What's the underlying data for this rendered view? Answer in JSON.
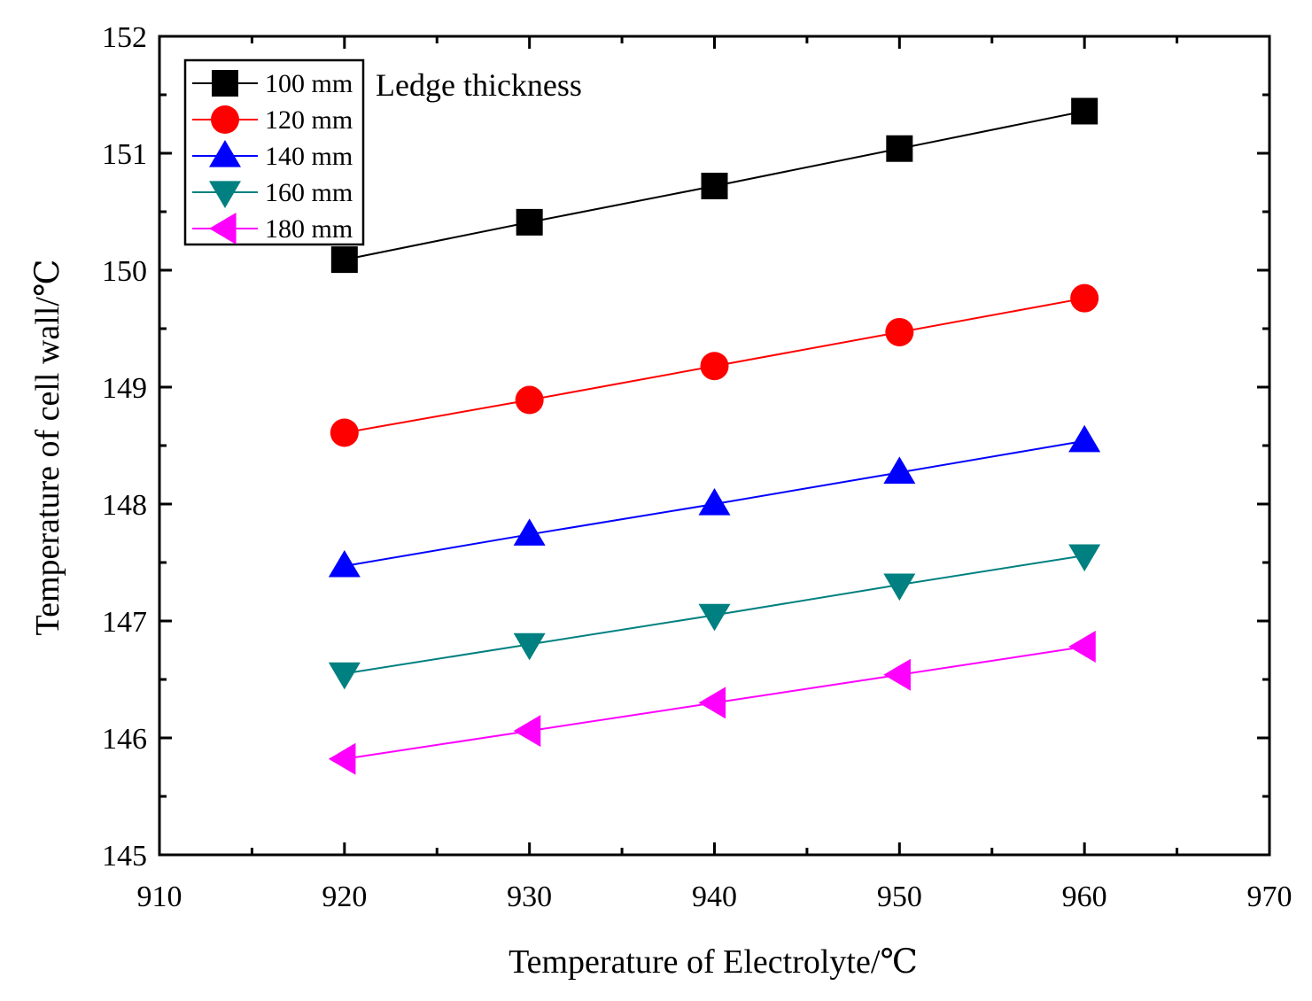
{
  "chart_data": {
    "type": "line",
    "title": "",
    "xlabel": "Temperature of Electrolyte/℃",
    "ylabel": "Temperature of cell wall/℃",
    "xlim": [
      910,
      970
    ],
    "ylim": [
      145,
      152
    ],
    "xticks": [
      910,
      920,
      930,
      940,
      950,
      960,
      970
    ],
    "yticks": [
      145,
      146,
      147,
      148,
      149,
      150,
      151,
      152
    ],
    "grid": false,
    "legend_position": "top-left",
    "annotation": "Ledge thickness",
    "x": [
      920,
      930,
      940,
      950,
      960
    ],
    "series": [
      {
        "name": "100 mm",
        "color": "#000000",
        "marker": "square",
        "values": [
          150.09,
          150.41,
          150.72,
          151.04,
          151.36
        ]
      },
      {
        "name": "120 mm",
        "color": "#ff0000",
        "marker": "circle",
        "values": [
          148.61,
          148.89,
          149.18,
          149.47,
          149.76
        ]
      },
      {
        "name": "140 mm",
        "color": "#0000ff",
        "marker": "triangle-up",
        "values": [
          147.47,
          147.74,
          148.0,
          148.27,
          148.54
        ]
      },
      {
        "name": "160 mm",
        "color": "#008080",
        "marker": "triangle-down",
        "values": [
          146.55,
          146.8,
          147.05,
          147.31,
          147.56
        ]
      },
      {
        "name": "180 mm",
        "color": "#ff00ff",
        "marker": "triangle-left",
        "values": [
          145.82,
          146.06,
          146.3,
          146.54,
          146.78
        ]
      }
    ]
  }
}
